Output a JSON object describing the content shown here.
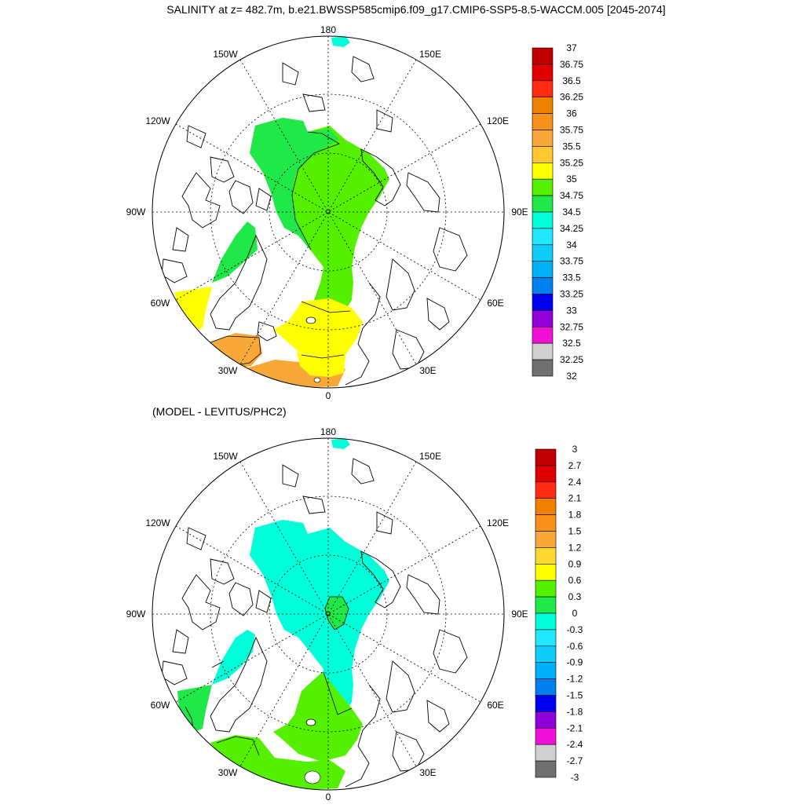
{
  "title": "SALINITY at z= 482.7m, b.e21.BWSSP585cmip6.f09_g17.CMIP6-SSP5-8.5-WACCM.005 [2045-2074]",
  "panel2_title": "(MODEL - LEVITUS/PHC2)",
  "map_labels": {
    "lon180": "180",
    "lon150W": "150W",
    "lon150E": "150E",
    "lon120W": "120W",
    "lon120E": "120E",
    "lon90W": "90W",
    "lon90E": "90E",
    "lon60W": "60W",
    "lon60E": "60E",
    "lon30W": "30W",
    "lon30E": "30E",
    "lon0": "0"
  },
  "colorbar1": {
    "labels": [
      "37",
      "36.75",
      "36.5",
      "36.25",
      "36",
      "35.75",
      "35.5",
      "35.25",
      "35",
      "34.75",
      "34.5",
      "34.25",
      "34",
      "33.75",
      "33.5",
      "33.25",
      "33",
      "32.75",
      "32.5",
      "32.25",
      "32"
    ],
    "colors": [
      "#c00000",
      "#e00000",
      "#ff2a12",
      "#f08000",
      "#f8901c",
      "#f8a838",
      "#ffc830",
      "#ffff00",
      "#55f000",
      "#20e848",
      "#00ffd8",
      "#20e8ff",
      "#10ccf8",
      "#00b0f8",
      "#0080f0",
      "#0000f0",
      "#9000d8",
      "#f010d8",
      "#d0d0d0",
      "#707070"
    ]
  },
  "colorbar2": {
    "labels": [
      "3",
      "2.7",
      "2.4",
      "2.1",
      "1.8",
      "1.5",
      "1.2",
      "0.9",
      "0.6",
      "0.3",
      "0",
      "-0.3",
      "-0.6",
      "-0.9",
      "-1.2",
      "-1.5",
      "-1.8",
      "-2.1",
      "-2.4",
      "-2.7",
      "-3"
    ],
    "colors": [
      "#c00000",
      "#e00000",
      "#ff2a12",
      "#f08000",
      "#f8901c",
      "#f8a838",
      "#ffd830",
      "#ffff00",
      "#55f000",
      "#20e848",
      "#00ffd8",
      "#20e8ff",
      "#10ccf8",
      "#00b0f8",
      "#0080f0",
      "#0000f0",
      "#9000d8",
      "#f010d8",
      "#d0d0d0",
      "#707070"
    ]
  },
  "fields": {
    "panel1": {
      "pacific_sector": "#55f000",
      "canada_basin_edge": "#20e848",
      "baffin_bay": "#20e848",
      "labrador_sea": "#ffff00",
      "nordic_seas": "#ffff00",
      "iceland_region": "#f8a838",
      "atlantic_south": "#f8a838"
    },
    "panel2": {
      "central_arctic": "#00ffd8",
      "lomonosov_patch": "#20e848",
      "baffin_bay": "#00ffd8",
      "labrador_sea": "#20e848",
      "nordic_seas": "#55f000",
      "atlantic_south": "#55f000"
    }
  }
}
